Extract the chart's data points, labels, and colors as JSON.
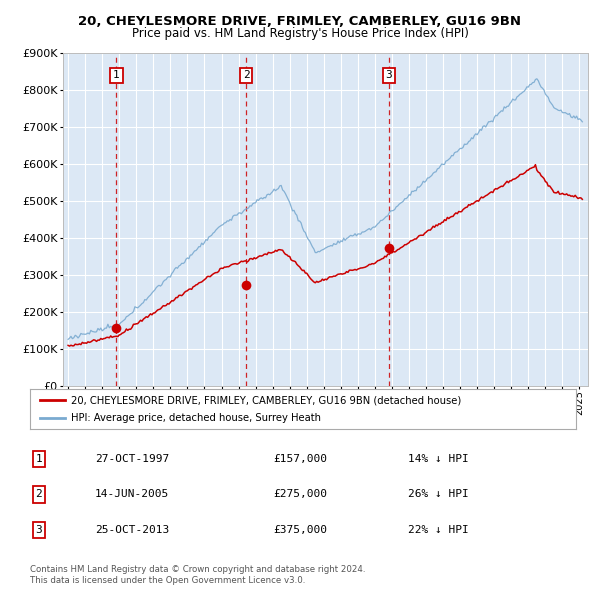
{
  "title1": "20, CHEYLESMORE DRIVE, FRIMLEY, CAMBERLEY, GU16 9BN",
  "title2": "Price paid vs. HM Land Registry's House Price Index (HPI)",
  "plot_bg_color": "#dce8f5",
  "red_line_color": "#cc0000",
  "blue_line_color": "#7aaad0",
  "vline_color": "#cc0000",
  "grid_color": "#ffffff",
  "ylim": [
    0,
    900000
  ],
  "yticks": [
    0,
    100000,
    200000,
    300000,
    400000,
    500000,
    600000,
    700000,
    800000,
    900000
  ],
  "xlim_start": 1994.7,
  "xlim_end": 2025.5,
  "purchases": [
    {
      "year": 1997.83,
      "price": 157000,
      "label": "1"
    },
    {
      "year": 2005.45,
      "price": 275000,
      "label": "2"
    },
    {
      "year": 2013.82,
      "price": 375000,
      "label": "3"
    }
  ],
  "legend_red": "20, CHEYLESMORE DRIVE, FRIMLEY, CAMBERLEY, GU16 9BN (detached house)",
  "legend_blue": "HPI: Average price, detached house, Surrey Heath",
  "table_rows": [
    {
      "num": "1",
      "date": "27-OCT-1997",
      "price": "£157,000",
      "hpi": "14% ↓ HPI"
    },
    {
      "num": "2",
      "date": "14-JUN-2005",
      "price": "£275,000",
      "hpi": "26% ↓ HPI"
    },
    {
      "num": "3",
      "date": "25-OCT-2013",
      "price": "£375,000",
      "hpi": "22% ↓ HPI"
    }
  ],
  "footer": "Contains HM Land Registry data © Crown copyright and database right 2024.\nThis data is licensed under the Open Government Licence v3.0."
}
